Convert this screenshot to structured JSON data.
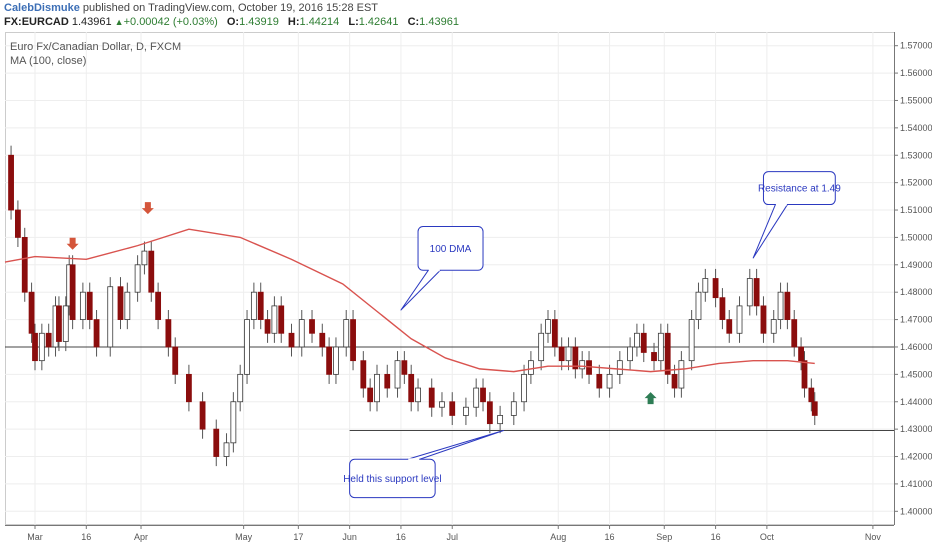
{
  "header": {
    "author": "CalebDismuke",
    "published": "published on TradingView.com, October 19, 2016 15:28 EST",
    "symbol": "FX:EURCAD",
    "last": "1.43961",
    "change": "+0.00042 (+0.03%)",
    "o_label": "O:",
    "o": "1.43919",
    "h_label": "H:",
    "h": "1.44214",
    "l_label": "L:",
    "l": "1.42641",
    "c_label": "C:",
    "c": "1.43961"
  },
  "chart_data": {
    "type": "candlestick",
    "title": "Euro Fx/Canadian Dollar, D, FXCM",
    "indicator": "MA (100, close)",
    "ylim": [
      1.395,
      1.575
    ],
    "y_ticks": [
      "1.40000",
      "1.41000",
      "1.42000",
      "1.43000",
      "1.44000",
      "1.45000",
      "1.46000",
      "1.47000",
      "1.48000",
      "1.49000",
      "1.50000",
      "1.51000",
      "1.52000",
      "1.53000",
      "1.54000",
      "1.55000",
      "1.56000",
      "1.57000"
    ],
    "x_ticks": [
      {
        "label": "Mar",
        "day": 0
      },
      {
        "label": "16",
        "day": 15
      },
      {
        "label": "Apr",
        "day": 31
      },
      {
        "label": "May",
        "day": 61
      },
      {
        "label": "17",
        "day": 77
      },
      {
        "label": "Jun",
        "day": 92
      },
      {
        "label": "16",
        "day": 107
      },
      {
        "label": "Jul",
        "day": 122
      },
      {
        "label": "Aug",
        "day": 153
      },
      {
        "label": "16",
        "day": 168
      },
      {
        "label": "Sep",
        "day": 184
      },
      {
        "label": "16",
        "day": 199
      },
      {
        "label": "Oct",
        "day": 214
      },
      {
        "label": "Nov",
        "day": 245
      }
    ],
    "candle_points": [
      {
        "day": -8,
        "close": 1.53
      },
      {
        "day": -7,
        "close": 1.51
      },
      {
        "day": -5,
        "close": 1.5
      },
      {
        "day": -3,
        "close": 1.48
      },
      {
        "day": -1,
        "close": 1.465
      },
      {
        "day": 0,
        "close": 1.455
      },
      {
        "day": 2,
        "close": 1.465
      },
      {
        "day": 4,
        "close": 1.46
      },
      {
        "day": 6,
        "close": 1.475
      },
      {
        "day": 7,
        "close": 1.462
      },
      {
        "day": 9,
        "close": 1.475
      },
      {
        "day": 10,
        "close": 1.49
      },
      {
        "day": 11,
        "close": 1.47
      },
      {
        "day": 14,
        "close": 1.48
      },
      {
        "day": 16,
        "close": 1.47
      },
      {
        "day": 18,
        "close": 1.46
      },
      {
        "day": 22,
        "close": 1.482
      },
      {
        "day": 25,
        "close": 1.47
      },
      {
        "day": 27,
        "close": 1.48
      },
      {
        "day": 30,
        "close": 1.49
      },
      {
        "day": 32,
        "close": 1.495
      },
      {
        "day": 34,
        "close": 1.48
      },
      {
        "day": 36,
        "close": 1.47
      },
      {
        "day": 39,
        "close": 1.46
      },
      {
        "day": 41,
        "close": 1.45
      },
      {
        "day": 45,
        "close": 1.44
      },
      {
        "day": 49,
        "close": 1.43
      },
      {
        "day": 53,
        "close": 1.42
      },
      {
        "day": 56,
        "close": 1.425
      },
      {
        "day": 58,
        "close": 1.44
      },
      {
        "day": 60,
        "close": 1.45
      },
      {
        "day": 62,
        "close": 1.47
      },
      {
        "day": 64,
        "close": 1.48
      },
      {
        "day": 66,
        "close": 1.47
      },
      {
        "day": 68,
        "close": 1.465
      },
      {
        "day": 70,
        "close": 1.475
      },
      {
        "day": 72,
        "close": 1.465
      },
      {
        "day": 75,
        "close": 1.46
      },
      {
        "day": 78,
        "close": 1.47
      },
      {
        "day": 81,
        "close": 1.465
      },
      {
        "day": 84,
        "close": 1.46
      },
      {
        "day": 86,
        "close": 1.45
      },
      {
        "day": 88,
        "close": 1.46
      },
      {
        "day": 91,
        "close": 1.47
      },
      {
        "day": 93,
        "close": 1.455
      },
      {
        "day": 96,
        "close": 1.445
      },
      {
        "day": 98,
        "close": 1.44
      },
      {
        "day": 100,
        "close": 1.45
      },
      {
        "day": 103,
        "close": 1.445
      },
      {
        "day": 106,
        "close": 1.455
      },
      {
        "day": 108,
        "close": 1.45
      },
      {
        "day": 110,
        "close": 1.44
      },
      {
        "day": 112,
        "close": 1.445
      },
      {
        "day": 116,
        "close": 1.438
      },
      {
        "day": 119,
        "close": 1.44
      },
      {
        "day": 122,
        "close": 1.435
      },
      {
        "day": 126,
        "close": 1.438
      },
      {
        "day": 129,
        "close": 1.445
      },
      {
        "day": 131,
        "close": 1.44
      },
      {
        "day": 133,
        "close": 1.432
      },
      {
        "day": 136,
        "close": 1.435
      },
      {
        "day": 140,
        "close": 1.44
      },
      {
        "day": 143,
        "close": 1.45
      },
      {
        "day": 145,
        "close": 1.455
      },
      {
        "day": 148,
        "close": 1.465
      },
      {
        "day": 150,
        "close": 1.47
      },
      {
        "day": 152,
        "close": 1.46
      },
      {
        "day": 154,
        "close": 1.455
      },
      {
        "day": 156,
        "close": 1.46
      },
      {
        "day": 158,
        "close": 1.452
      },
      {
        "day": 160,
        "close": 1.455
      },
      {
        "day": 162,
        "close": 1.45
      },
      {
        "day": 165,
        "close": 1.445
      },
      {
        "day": 168,
        "close": 1.45
      },
      {
        "day": 171,
        "close": 1.455
      },
      {
        "day": 174,
        "close": 1.46
      },
      {
        "day": 176,
        "close": 1.465
      },
      {
        "day": 178,
        "close": 1.458
      },
      {
        "day": 181,
        "close": 1.455
      },
      {
        "day": 183,
        "close": 1.465
      },
      {
        "day": 185,
        "close": 1.45
      },
      {
        "day": 187,
        "close": 1.445
      },
      {
        "day": 189,
        "close": 1.455
      },
      {
        "day": 192,
        "close": 1.47
      },
      {
        "day": 194,
        "close": 1.48
      },
      {
        "day": 196,
        "close": 1.485
      },
      {
        "day": 199,
        "close": 1.478
      },
      {
        "day": 201,
        "close": 1.47
      },
      {
        "day": 203,
        "close": 1.465
      },
      {
        "day": 206,
        "close": 1.475
      },
      {
        "day": 209,
        "close": 1.485
      },
      {
        "day": 211,
        "close": 1.475
      },
      {
        "day": 213,
        "close": 1.465
      },
      {
        "day": 216,
        "close": 1.47
      },
      {
        "day": 218,
        "close": 1.48
      },
      {
        "day": 220,
        "close": 1.47
      },
      {
        "day": 222,
        "close": 1.46
      },
      {
        "day": 224,
        "close": 1.455
      },
      {
        "day": 225,
        "close": 1.445
      },
      {
        "day": 227,
        "close": 1.44
      },
      {
        "day": 228,
        "close": 1.435
      }
    ],
    "ma_points": [
      {
        "day": -10,
        "value": 1.491
      },
      {
        "day": 0,
        "value": 1.493
      },
      {
        "day": 15,
        "value": 1.492
      },
      {
        "day": 30,
        "value": 1.497
      },
      {
        "day": 45,
        "value": 1.503
      },
      {
        "day": 60,
        "value": 1.5
      },
      {
        "day": 75,
        "value": 1.492
      },
      {
        "day": 90,
        "value": 1.483
      },
      {
        "day": 100,
        "value": 1.473
      },
      {
        "day": 110,
        "value": 1.463
      },
      {
        "day": 120,
        "value": 1.456
      },
      {
        "day": 130,
        "value": 1.452
      },
      {
        "day": 140,
        "value": 1.451
      },
      {
        "day": 150,
        "value": 1.453
      },
      {
        "day": 160,
        "value": 1.453
      },
      {
        "day": 170,
        "value": 1.452
      },
      {
        "day": 180,
        "value": 1.451
      },
      {
        "day": 190,
        "value": 1.452
      },
      {
        "day": 200,
        "value": 1.454
      },
      {
        "day": 210,
        "value": 1.455
      },
      {
        "day": 220,
        "value": 1.455
      },
      {
        "day": 228,
        "value": 1.454
      }
    ],
    "horizontal_lines": [
      {
        "name": "resistance-line",
        "value": 1.46,
        "from_day": -10,
        "to_day": 260
      },
      {
        "name": "support-line",
        "value": 1.4295,
        "from_day": 92,
        "to_day": 260
      }
    ],
    "arrows": [
      {
        "name": "down-arrow-march",
        "day": 11,
        "value": 1.4955,
        "direction": "down"
      },
      {
        "name": "down-arrow-april",
        "day": 33,
        "value": 1.5085,
        "direction": "down"
      },
      {
        "name": "up-arrow-august",
        "day": 180,
        "value": 1.4435,
        "direction": "up"
      }
    ],
    "annotations": [
      {
        "name": "annotation-resistance",
        "text": "Resistance at 1.49",
        "box": {
          "from_day": 213,
          "to_day": 234,
          "top": 1.524,
          "bottom": 1.512
        },
        "pointer": {
          "day": 210,
          "value": 1.4925
        }
      },
      {
        "name": "annotation-100dma",
        "text": "100 DMA",
        "box": {
          "from_day": 112,
          "to_day": 131,
          "top": 1.504,
          "bottom": 1.488
        },
        "pointer": {
          "day": 107,
          "value": 1.4735
        }
      },
      {
        "name": "annotation-support",
        "text": "Held this support level",
        "box": {
          "from_day": 92,
          "to_day": 117,
          "top": 1.419,
          "bottom": 1.405
        },
        "pointer": {
          "day": 137,
          "value": 1.4295
        }
      }
    ],
    "colors": {
      "up": "#ffffff",
      "down": "#8b0d0d",
      "up_border": "#3a3a3a",
      "wick": "#555555",
      "ma": "#d9534f",
      "arrow_down": "#d4553a",
      "arrow_up": "#2e7d55",
      "note_border": "#2b39c0",
      "note_text": "#2b39c0",
      "grid": "#eeeeee",
      "axis": "#777777"
    }
  }
}
